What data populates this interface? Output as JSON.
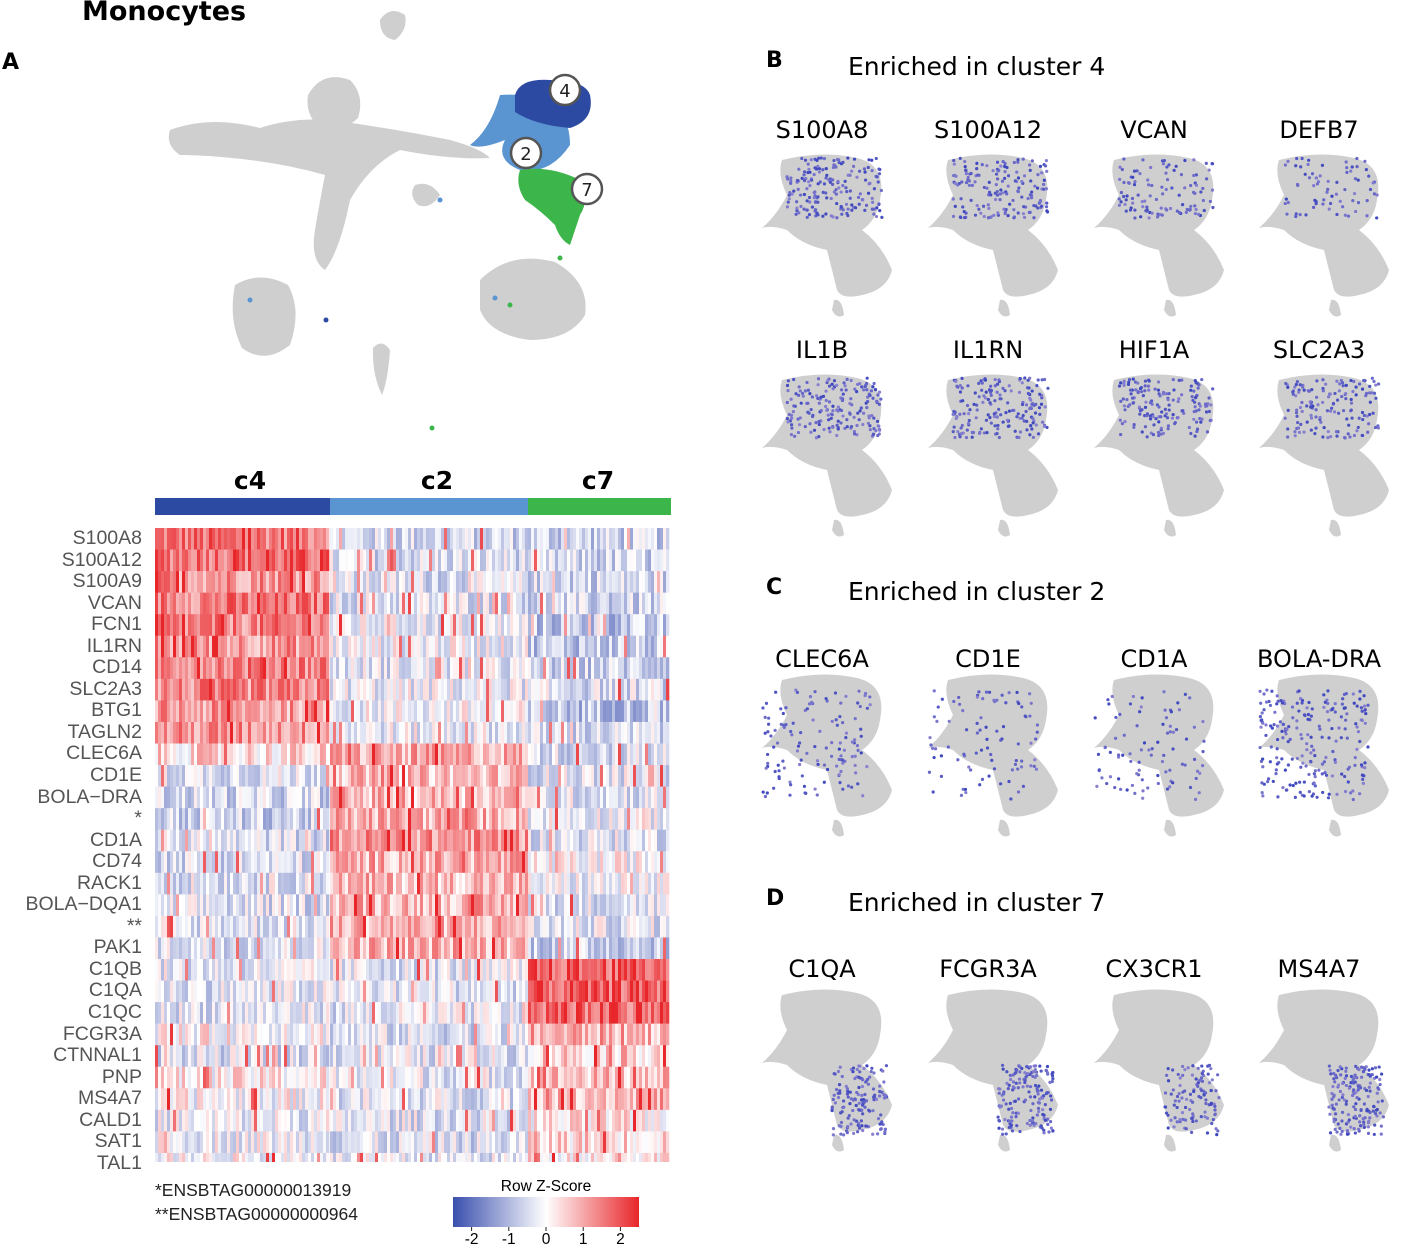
{
  "title": "Monocytes",
  "panel_labels": {
    "a": "A",
    "b": "B",
    "c": "C",
    "d": "D"
  },
  "colors": {
    "cluster4": "#2d4aa2",
    "cluster2": "#5b95d1",
    "cluster7": "#3cb54a",
    "background_cells": "#cfcfcf",
    "low": "#3a4fae",
    "mid": "#ffffff",
    "high": "#e8262a"
  },
  "umap": {
    "cluster_markers": [
      "4",
      "2",
      "7"
    ]
  },
  "chart_data": {
    "type": "heatmap",
    "title": "Row Z-Score",
    "clusters": [
      {
        "name": "c4",
        "color": "#2d4aa2"
      },
      {
        "name": "c2",
        "color": "#5b95d1"
      },
      {
        "name": "c7",
        "color": "#3cb54a"
      }
    ],
    "genes": [
      "S100A8",
      "S100A12",
      "S100A9",
      "VCAN",
      "FCN1",
      "IL1RN",
      "CD14",
      "SLC2A3",
      "BTG1",
      "TAGLN2",
      "CLEC6A",
      "CD1E",
      "BOLA−DRA",
      "*",
      "CD1A",
      "CD74",
      "RACK1",
      "BOLA−DQA1",
      "**",
      "PAK1",
      "C1QB",
      "C1QA",
      "C1QC",
      "FCGR3A",
      "CTNNAL1",
      "PNP",
      "MS4A7",
      "CALD1",
      "SAT1",
      "TAL1"
    ],
    "mean_z_by_cluster": [
      [
        1.6,
        -0.5,
        -0.6
      ],
      [
        1.7,
        -0.4,
        -0.6
      ],
      [
        1.3,
        -0.4,
        -0.5
      ],
      [
        1.5,
        -0.3,
        -0.6
      ],
      [
        1.4,
        -0.2,
        -0.8
      ],
      [
        1.2,
        -0.1,
        -0.7
      ],
      [
        1.5,
        -0.3,
        -0.6
      ],
      [
        1.3,
        -0.2,
        -0.4
      ],
      [
        1.1,
        -0.1,
        -0.8
      ],
      [
        1.2,
        -0.2,
        -0.5
      ],
      [
        0.4,
        0.9,
        -0.4
      ],
      [
        -0.3,
        0.7,
        -0.3
      ],
      [
        -0.5,
        0.8,
        -0.3
      ],
      [
        -0.6,
        0.9,
        -0.1
      ],
      [
        -0.4,
        1.2,
        -0.3
      ],
      [
        -0.4,
        0.9,
        0.0
      ],
      [
        -0.3,
        0.8,
        -0.2
      ],
      [
        -0.4,
        0.9,
        -0.3
      ],
      [
        -0.3,
        0.9,
        -0.3
      ],
      [
        -0.3,
        0.9,
        -0.6
      ],
      [
        -0.3,
        -0.3,
        1.8
      ],
      [
        -0.3,
        -0.3,
        1.8
      ],
      [
        -0.3,
        -0.3,
        1.7
      ],
      [
        0.1,
        -0.4,
        0.9
      ],
      [
        -0.4,
        -0.3,
        0.6
      ],
      [
        0.2,
        -0.2,
        0.7
      ],
      [
        0.0,
        -0.3,
        0.9
      ],
      [
        -0.2,
        -0.3,
        0.2
      ],
      [
        -0.1,
        -0.4,
        0.5
      ],
      [
        0.0,
        -0.3,
        0.3
      ]
    ],
    "color_scale": {
      "title": "Row Z-Score",
      "ticks": [
        "-2",
        "-1",
        "0",
        "1",
        "2"
      ],
      "range": [
        -2.5,
        2.5
      ]
    },
    "footnotes": [
      "*ENSBTAG00000013919",
      "**ENSBTAG00000000964"
    ]
  },
  "panels": {
    "b": {
      "heading": "Enriched in cluster 4",
      "genes_row1": [
        "S100A8",
        "S100A12",
        "VCAN",
        "DEFB7"
      ],
      "genes_row2": [
        "IL1B",
        "IL1RN",
        "HIF1A",
        "SLC2A3"
      ]
    },
    "c": {
      "heading": "Enriched in cluster 2",
      "genes": [
        "CLEC6A",
        "CD1E",
        "CD1A",
        "BOLA-DRA"
      ]
    },
    "d": {
      "heading": "Enriched in cluster 7",
      "genes": [
        "C1QA",
        "FCGR3A",
        "CX3CR1",
        "MS4A7"
      ]
    }
  }
}
